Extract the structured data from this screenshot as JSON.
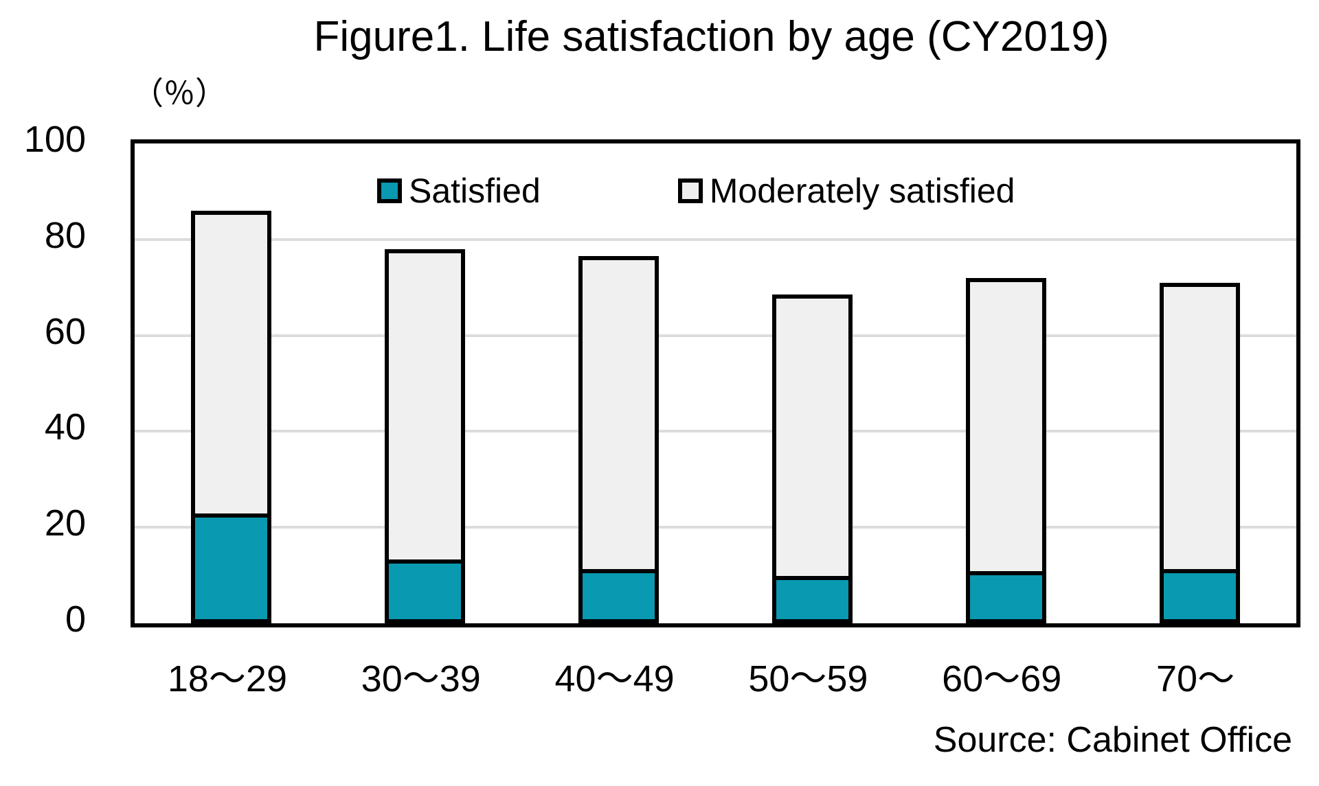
{
  "title": "Figure1. Life satisfaction by age (CY2019)",
  "source_caption": "Source: Cabinet Office",
  "colors": {
    "satisfied_fill": "#0999B0",
    "moderately_satisfied_fill": "#F0F0F0",
    "gridline": "#DCDCDC",
    "frame": "#000000"
  },
  "chart_data": {
    "type": "bar",
    "stacked": true,
    "title": "Figure1. Life satisfaction by age (CY2019)",
    "ylabel": "（％）",
    "ylim": [
      0,
      100
    ],
    "yticks": [
      0,
      20,
      40,
      60,
      80,
      100
    ],
    "grid": true,
    "legend_position": "top-inside",
    "categories": [
      "18〜29",
      "30〜39",
      "40〜49",
      "50〜59",
      "60〜69",
      "70〜"
    ],
    "series": [
      {
        "name": "Satisfied",
        "color": "#0999B0",
        "values": [
          22,
          12.5,
          10.5,
          9,
          10,
          10.5
        ]
      },
      {
        "name": "Moderately satisfied",
        "color": "#F0F0F0",
        "values": [
          64,
          65.5,
          66,
          59.5,
          62,
          60.5
        ]
      }
    ],
    "stack_totals": [
      86,
      78,
      76.5,
      68.5,
      72,
      71
    ],
    "source": "Source: Cabinet Office"
  }
}
